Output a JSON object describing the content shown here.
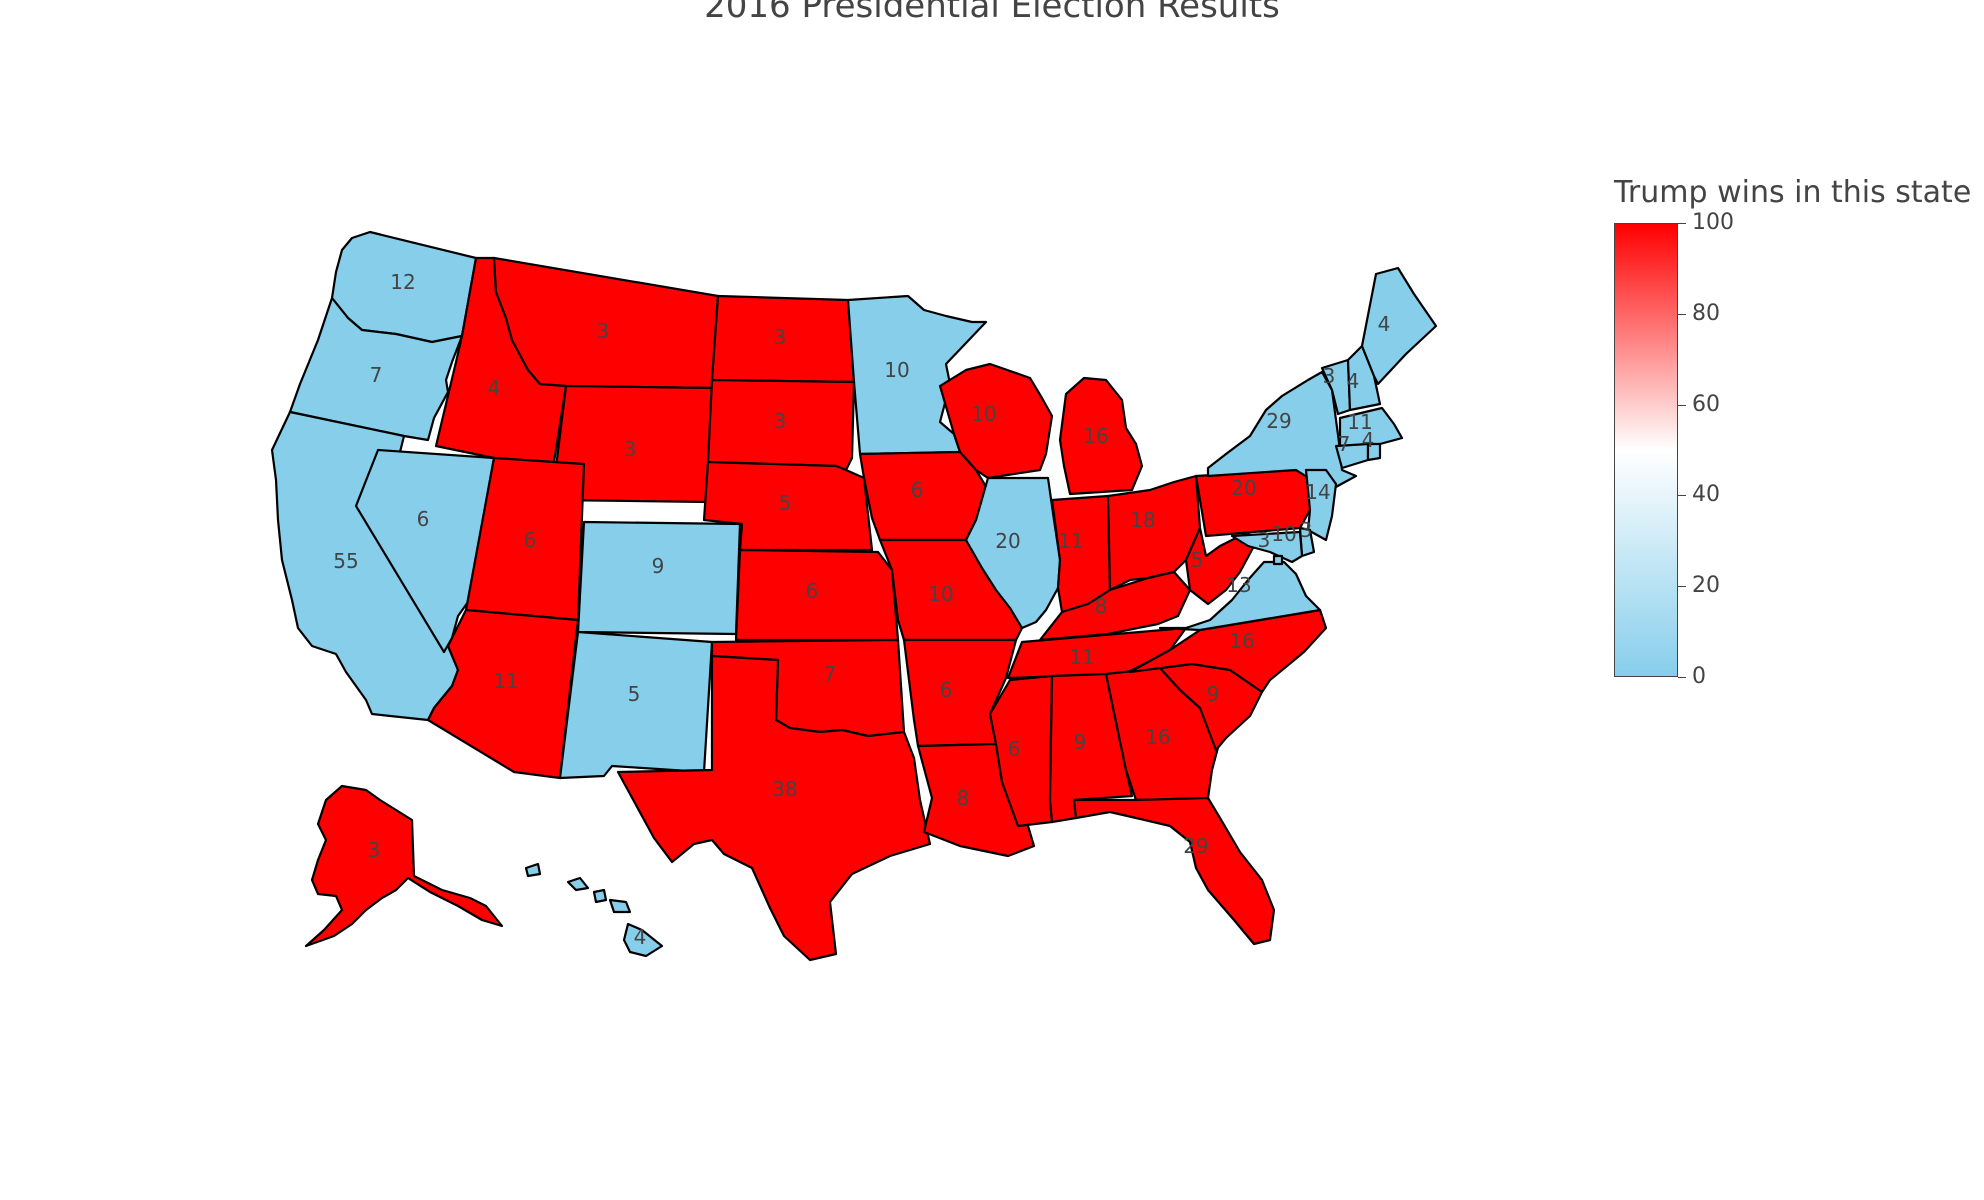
{
  "chart_data": {
    "type": "choropleth",
    "title": "2016 Presidential Election Results",
    "colorbar": {
      "title": "Trump wins in this state",
      "range": [
        0,
        100
      ],
      "ticks": [
        "0",
        "20",
        "40",
        "60",
        "80",
        "100"
      ],
      "colorscale": [
        "#87ceeb",
        "#ffffff",
        "#ff0000"
      ]
    },
    "colors": {
      "trump": "#ff0000",
      "clinton": "#87ceeb"
    },
    "states": [
      {
        "code": "WA",
        "ev": 12,
        "trump": 0
      },
      {
        "code": "OR",
        "ev": 7,
        "trump": 0
      },
      {
        "code": "CA",
        "ev": 55,
        "trump": 0
      },
      {
        "code": "NV",
        "ev": 6,
        "trump": 0
      },
      {
        "code": "ID",
        "ev": 4,
        "trump": 100
      },
      {
        "code": "MT",
        "ev": 3,
        "trump": 100
      },
      {
        "code": "WY",
        "ev": 3,
        "trump": 100
      },
      {
        "code": "UT",
        "ev": 6,
        "trump": 100
      },
      {
        "code": "AZ",
        "ev": 11,
        "trump": 100
      },
      {
        "code": "CO",
        "ev": 9,
        "trump": 0
      },
      {
        "code": "NM",
        "ev": 5,
        "trump": 0
      },
      {
        "code": "ND",
        "ev": 3,
        "trump": 100
      },
      {
        "code": "SD",
        "ev": 3,
        "trump": 100
      },
      {
        "code": "NE",
        "ev": 5,
        "trump": 100
      },
      {
        "code": "KS",
        "ev": 6,
        "trump": 100
      },
      {
        "code": "OK",
        "ev": 7,
        "trump": 100
      },
      {
        "code": "TX",
        "ev": 38,
        "trump": 100
      },
      {
        "code": "MN",
        "ev": 10,
        "trump": 0
      },
      {
        "code": "IA",
        "ev": 6,
        "trump": 100
      },
      {
        "code": "MO",
        "ev": 10,
        "trump": 100
      },
      {
        "code": "AR",
        "ev": 6,
        "trump": 100
      },
      {
        "code": "LA",
        "ev": 8,
        "trump": 100
      },
      {
        "code": "WI",
        "ev": 10,
        "trump": 100
      },
      {
        "code": "IL",
        "ev": 20,
        "trump": 0
      },
      {
        "code": "MI",
        "ev": 16,
        "trump": 100
      },
      {
        "code": "IN",
        "ev": 11,
        "trump": 100
      },
      {
        "code": "OH",
        "ev": 18,
        "trump": 100
      },
      {
        "code": "KY",
        "ev": 8,
        "trump": 100
      },
      {
        "code": "TN",
        "ev": 11,
        "trump": 100
      },
      {
        "code": "MS",
        "ev": 6,
        "trump": 100
      },
      {
        "code": "AL",
        "ev": 9,
        "trump": 100
      },
      {
        "code": "GA",
        "ev": 16,
        "trump": 100
      },
      {
        "code": "FL",
        "ev": 29,
        "trump": 100
      },
      {
        "code": "SC",
        "ev": 9,
        "trump": 100
      },
      {
        "code": "NC",
        "ev": 16,
        "trump": 100
      },
      {
        "code": "VA",
        "ev": 13,
        "trump": 0
      },
      {
        "code": "WV",
        "ev": 5,
        "trump": 100
      },
      {
        "code": "PA",
        "ev": 20,
        "trump": 100
      },
      {
        "code": "NY",
        "ev": 29,
        "trump": 0
      },
      {
        "code": "VT",
        "ev": 3,
        "trump": 0
      },
      {
        "code": "NH",
        "ev": 4,
        "trump": 0
      },
      {
        "code": "ME",
        "ev": 4,
        "trump": 0
      },
      {
        "code": "MA",
        "ev": 11,
        "trump": 0
      },
      {
        "code": "CT",
        "ev": 7,
        "trump": 0
      },
      {
        "code": "RI",
        "ev": 4,
        "trump": 0
      },
      {
        "code": "NJ",
        "ev": 14,
        "trump": 0
      },
      {
        "code": "DE",
        "ev": 3,
        "trump": 0
      },
      {
        "code": "MD",
        "ev": 10,
        "trump": 0
      },
      {
        "code": "DC",
        "ev": 3,
        "trump": 0
      },
      {
        "code": "AK",
        "ev": 3,
        "trump": 100
      },
      {
        "code": "HI",
        "ev": 4,
        "trump": 0
      }
    ]
  }
}
